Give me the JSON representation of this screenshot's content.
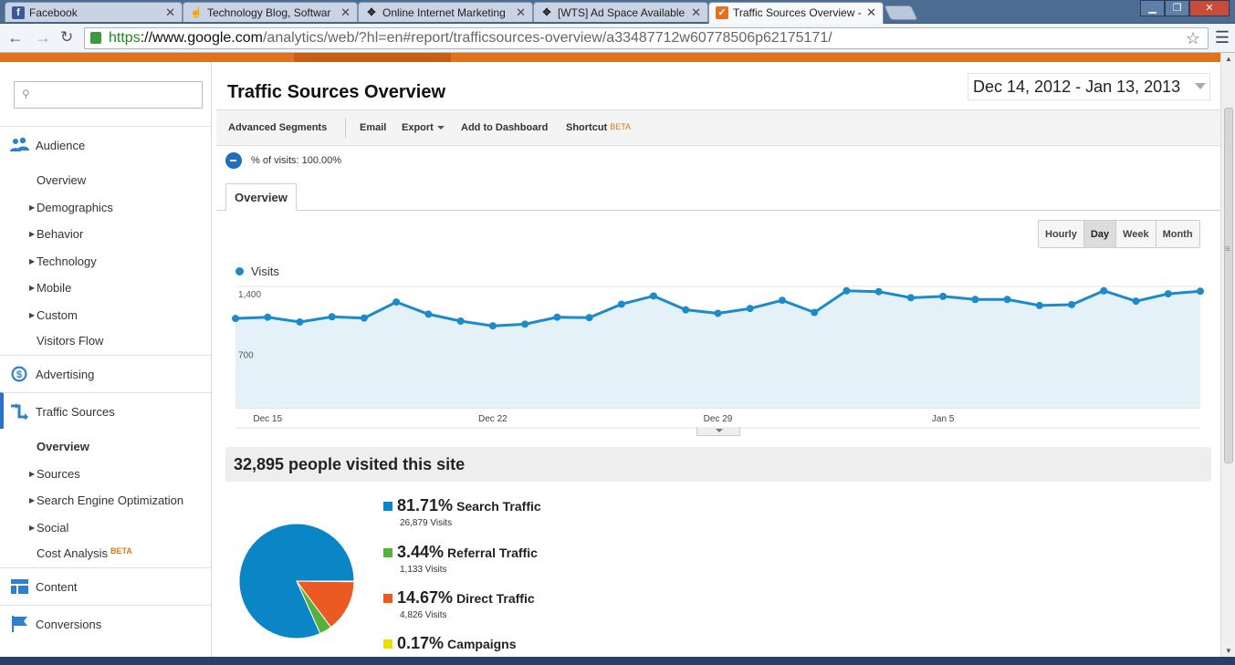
{
  "browser": {
    "tabs": [
      {
        "title": "Facebook",
        "icon": "facebook-icon",
        "color": "#3b5998"
      },
      {
        "title": "Technology Blog, Softwar",
        "icon": "hand-cursor-icon",
        "color": "#666666"
      },
      {
        "title": "Online Internet Marketing",
        "icon": "arrows-icon",
        "color": "#222222"
      },
      {
        "title": "[WTS] Ad Space Available",
        "icon": "arrows-icon",
        "color": "#222222"
      },
      {
        "title": "Traffic Sources Overview -",
        "icon": "analytics-icon",
        "color": "#e2711d",
        "active": true
      }
    ],
    "url_scheme": "https",
    "url_host": "://www.google.com",
    "url_path": "/analytics/web/?hl=en#report/trafficsources-overview/a33487712w60778506p62175171/"
  },
  "sidebar": {
    "search_placeholder": "",
    "sections": {
      "audience": "Audience",
      "advertising": "Advertising",
      "traffic_sources": "Traffic Sources",
      "content": "Content",
      "conversions": "Conversions"
    },
    "audience_items": {
      "overview": "Overview",
      "demographics": "Demographics",
      "behavior": "Behavior",
      "technology": "Technology",
      "mobile": "Mobile",
      "custom": "Custom",
      "visitors_flow": "Visitors Flow"
    },
    "traffic_items": {
      "overview": "Overview",
      "sources": "Sources",
      "seo": "Search Engine Optimization",
      "social": "Social",
      "cost_analysis": "Cost Analysis",
      "beta": "BETA"
    }
  },
  "report": {
    "title": "Traffic Sources Overview",
    "date_range": "Dec 14, 2012 - Jan 13, 2013",
    "actions": {
      "advanced_segments": "Advanced Segments",
      "email": "Email",
      "export": "Export",
      "add_to_dashboard": "Add to Dashboard",
      "shortcut": "Shortcut",
      "beta": "BETA"
    },
    "segment_text": "% of visits: 100.00%",
    "tab_overview": "Overview",
    "granularity": [
      "Hourly",
      "Day",
      "Week",
      "Month"
    ],
    "granularity_selected": "Day",
    "legend_visits": "Visits",
    "visitors_summary": "32,895 people visited this site"
  },
  "chart_data": {
    "type": "area",
    "series": [
      {
        "name": "Visits",
        "values": [
          1030,
          1045,
          990,
          1050,
          1035,
          1220,
          1080,
          1000,
          945,
          965,
          1045,
          1040,
          1195,
          1290,
          1130,
          1090,
          1145,
          1240,
          1100,
          1350,
          1340,
          1270,
          1285,
          1250,
          1250,
          1180,
          1190,
          1350,
          1230,
          1315,
          1345
        ]
      }
    ],
    "x": [
      "Dec 14",
      "Dec 15",
      "Dec 16",
      "Dec 17",
      "Dec 18",
      "Dec 19",
      "Dec 20",
      "Dec 21",
      "Dec 22",
      "Dec 23",
      "Dec 24",
      "Dec 25",
      "Dec 26",
      "Dec 27",
      "Dec 28",
      "Dec 29",
      "Dec 30",
      "Dec 31",
      "Jan 1",
      "Jan 2",
      "Jan 3",
      "Jan 4",
      "Jan 5",
      "Jan 6",
      "Jan 7",
      "Jan 8",
      "Jan 9",
      "Jan 10",
      "Jan 11",
      "Jan 12",
      "Jan 13"
    ],
    "x_tick_labels": [
      "Dec 15",
      "Dec 22",
      "Dec 29",
      "Jan 5"
    ],
    "y_tick_labels": [
      "1,400",
      "700"
    ],
    "ylim": [
      0,
      1400
    ],
    "grid": true,
    "colors": {
      "line": "#1b8bc9",
      "fill": "#e4f1f8"
    }
  },
  "pie_data": {
    "type": "pie",
    "slices": [
      {
        "label": "Search Traffic",
        "percent_text": "81.71%",
        "value": 81.71,
        "visits": "26,879 Visits",
        "color": "#0a85c6"
      },
      {
        "label": "Referral Traffic",
        "percent_text": "3.44%",
        "value": 3.44,
        "visits": "1,133 Visits",
        "color": "#55b13a"
      },
      {
        "label": "Direct Traffic",
        "percent_text": "14.67%",
        "value": 14.67,
        "visits": "4,826 Visits",
        "color": "#ea5a22"
      },
      {
        "label": "Campaigns",
        "percent_text": "0.17%",
        "value": 0.17,
        "visits": "",
        "color": "#eedd00"
      }
    ]
  }
}
